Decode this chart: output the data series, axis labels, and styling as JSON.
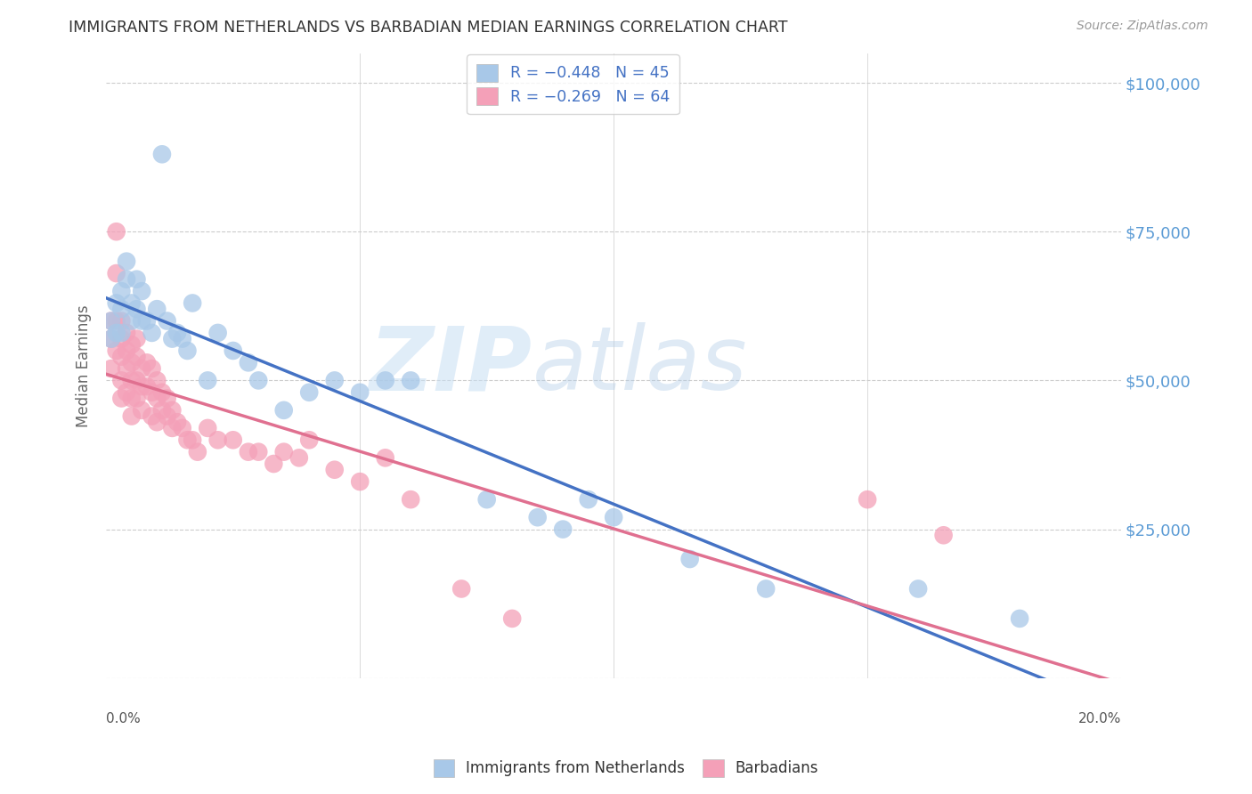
{
  "title": "IMMIGRANTS FROM NETHERLANDS VS BARBADIAN MEDIAN EARNINGS CORRELATION CHART",
  "source": "Source: ZipAtlas.com",
  "ylabel": "Median Earnings",
  "y_ticks": [
    0,
    25000,
    50000,
    75000,
    100000
  ],
  "y_tick_labels": [
    "",
    "$25,000",
    "$50,000",
    "$75,000",
    "$100,000"
  ],
  "x_min": 0.0,
  "x_max": 0.2,
  "y_min": 0,
  "y_max": 105000,
  "legend_r1": "R = -0.448",
  "legend_n1": "N = 45",
  "legend_r2": "R = -0.269",
  "legend_n2": "N = 64",
  "color_blue": "#a8c8e8",
  "color_pink": "#f4a0b8",
  "line_color_blue": "#4472c4",
  "line_color_pink": "#e07090",
  "watermark_zip": "ZIP",
  "watermark_atlas": "atlas",
  "background_color": "#ffffff",
  "grid_color": "#cccccc",
  "title_color": "#333333",
  "right_label_color": "#5b9bd5",
  "netherlands_x": [
    0.001,
    0.001,
    0.002,
    0.002,
    0.003,
    0.003,
    0.003,
    0.004,
    0.004,
    0.005,
    0.005,
    0.006,
    0.006,
    0.007,
    0.007,
    0.008,
    0.009,
    0.01,
    0.011,
    0.012,
    0.013,
    0.014,
    0.015,
    0.016,
    0.017,
    0.02,
    0.022,
    0.025,
    0.028,
    0.03,
    0.035,
    0.04,
    0.045,
    0.05,
    0.055,
    0.06,
    0.075,
    0.085,
    0.09,
    0.095,
    0.1,
    0.115,
    0.13,
    0.16,
    0.18
  ],
  "netherlands_y": [
    60000,
    57000,
    63000,
    58000,
    65000,
    62000,
    58000,
    70000,
    67000,
    63000,
    60000,
    67000,
    62000,
    65000,
    60000,
    60000,
    58000,
    62000,
    88000,
    60000,
    57000,
    58000,
    57000,
    55000,
    63000,
    50000,
    58000,
    55000,
    53000,
    50000,
    45000,
    48000,
    50000,
    48000,
    50000,
    50000,
    30000,
    27000,
    25000,
    30000,
    27000,
    20000,
    15000,
    15000,
    10000
  ],
  "barbadian_x": [
    0.001,
    0.001,
    0.001,
    0.002,
    0.002,
    0.002,
    0.002,
    0.003,
    0.003,
    0.003,
    0.003,
    0.003,
    0.004,
    0.004,
    0.004,
    0.004,
    0.005,
    0.005,
    0.005,
    0.005,
    0.005,
    0.006,
    0.006,
    0.006,
    0.006,
    0.007,
    0.007,
    0.007,
    0.008,
    0.008,
    0.009,
    0.009,
    0.009,
    0.01,
    0.01,
    0.01,
    0.011,
    0.011,
    0.012,
    0.012,
    0.013,
    0.013,
    0.014,
    0.015,
    0.016,
    0.017,
    0.018,
    0.02,
    0.022,
    0.025,
    0.028,
    0.03,
    0.033,
    0.035,
    0.038,
    0.04,
    0.045,
    0.05,
    0.055,
    0.06,
    0.07,
    0.08,
    0.15,
    0.165
  ],
  "barbadian_y": [
    60000,
    57000,
    52000,
    75000,
    68000,
    60000,
    55000,
    60000,
    57000,
    54000,
    50000,
    47000,
    58000,
    55000,
    52000,
    48000,
    56000,
    53000,
    50000,
    47000,
    44000,
    57000,
    54000,
    50000,
    47000,
    52000,
    49000,
    45000,
    53000,
    49000,
    52000,
    48000,
    44000,
    50000,
    47000,
    43000,
    48000,
    45000,
    47000,
    44000,
    45000,
    42000,
    43000,
    42000,
    40000,
    40000,
    38000,
    42000,
    40000,
    40000,
    38000,
    38000,
    36000,
    38000,
    37000,
    40000,
    35000,
    33000,
    37000,
    30000,
    15000,
    10000,
    30000,
    24000
  ]
}
